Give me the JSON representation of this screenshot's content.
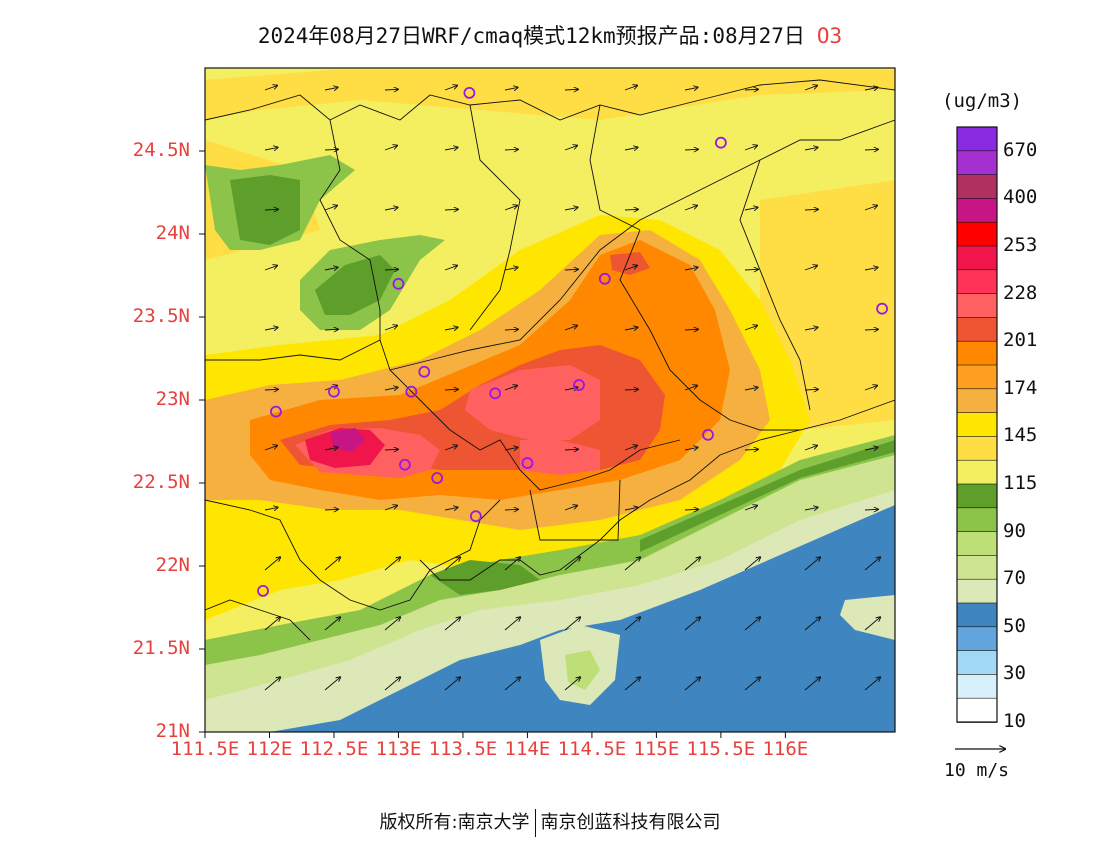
{
  "title": {
    "main": "2024年08月27日WRF/cmaq模式12km预报产品:08月27日",
    "pollutant": "O3"
  },
  "axes": {
    "lat_labels": [
      "24.5N",
      "24N",
      "23.5N",
      "23N",
      "22.5N",
      "22N",
      "21.5N",
      "21N"
    ],
    "lat_values": [
      24.5,
      24,
      23.5,
      23,
      22.5,
      22,
      21.5,
      21
    ],
    "lon_labels": [
      "111.5E",
      "112E",
      "112.5E",
      "113E",
      "113.5E",
      "114E",
      "114.5E",
      "115E",
      "115.5E",
      "116E"
    ],
    "lon_values": [
      111.5,
      112,
      112.5,
      113,
      113.5,
      114,
      114.5,
      115,
      115.5,
      116
    ],
    "lon_range": [
      111.5,
      116.85
    ],
    "lat_range": [
      21,
      25.0
    ]
  },
  "colorbar": {
    "unit": "(ug/m3)",
    "levels": [
      "670",
      "400",
      "253",
      "228",
      "201",
      "174",
      "145",
      "115",
      "90",
      "70",
      "50",
      "30",
      "10"
    ],
    "colors_top_to_bottom": [
      "#8a2be2",
      "#a62fd0",
      "#b03060",
      "#c71585",
      "#ff0000",
      "#f0154a",
      "#ff3355",
      "#ff6060",
      "#ee5533",
      "#ff8800",
      "#ffa020",
      "#f5b040",
      "#ffe600",
      "#ffdd44",
      "#f3ef60",
      "#5e9e2a",
      "#8cc44a",
      "#bedf78",
      "#cfe490",
      "#dde8b8",
      "#3f86c0",
      "#62a4dc",
      "#a0d8f5",
      "#d8f0fa",
      "#ffffff"
    ]
  },
  "wind": {
    "reference_label": "10 m/s"
  },
  "markers": [
    {
      "lon": 113.55,
      "lat": 24.85
    },
    {
      "lon": 115.5,
      "lat": 24.55
    },
    {
      "lon": 113.0,
      "lat": 23.7
    },
    {
      "lon": 114.6,
      "lat": 23.73
    },
    {
      "lon": 116.75,
      "lat": 23.55
    },
    {
      "lon": 113.2,
      "lat": 23.17
    },
    {
      "lon": 112.5,
      "lat": 23.05
    },
    {
      "lon": 113.1,
      "lat": 23.05
    },
    {
      "lon": 113.75,
      "lat": 23.04
    },
    {
      "lon": 114.4,
      "lat": 23.09
    },
    {
      "lon": 112.05,
      "lat": 22.93
    },
    {
      "lon": 115.4,
      "lat": 22.79
    },
    {
      "lon": 113.05,
      "lat": 22.61
    },
    {
      "lon": 113.3,
      "lat": 22.53
    },
    {
      "lon": 114.0,
      "lat": 22.62
    },
    {
      "lon": 113.6,
      "lat": 22.3
    },
    {
      "lon": 111.95,
      "lat": 21.85
    }
  ],
  "footer": {
    "left": "版权所有:南京大学",
    "right": "南京创蓝科技有限公司"
  }
}
